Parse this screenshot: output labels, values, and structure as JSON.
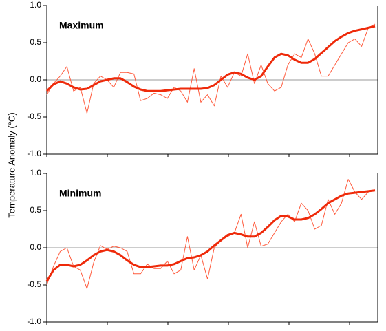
{
  "chart_data": [
    {
      "type": "line",
      "title": "Maximum",
      "ylabel": "Temperature Anomaly (°C)",
      "categories": [
        null,
        null,
        null,
        null,
        null,
        null,
        null,
        null,
        null,
        null,
        null,
        null,
        null,
        null,
        null,
        null,
        null,
        null,
        null,
        null,
        null,
        null,
        null,
        null,
        null,
        null,
        null,
        null,
        null,
        null,
        null,
        null,
        null,
        null,
        null,
        null,
        null,
        null,
        null,
        null,
        null,
        null,
        null,
        null,
        null,
        null,
        null,
        null,
        null,
        null
      ],
      "series": [
        {
          "color": "#ff5a3c",
          "width": 1,
          "values": [
            -0.2,
            -0.05,
            0.05,
            0.18,
            -0.15,
            -0.1,
            -0.45,
            -0.05,
            0.05,
            0.0,
            -0.1,
            0.1,
            0.1,
            0.08,
            -0.28,
            -0.25,
            -0.18,
            -0.2,
            -0.25,
            -0.1,
            -0.15,
            -0.3,
            0.15,
            -0.3,
            -0.2,
            -0.35,
            0.05,
            -0.1,
            0.1,
            0.05,
            0.35,
            -0.05,
            0.2,
            -0.05,
            -0.15,
            -0.1,
            0.2,
            0.35,
            0.3,
            0.55,
            0.35,
            0.05,
            0.05,
            0.2,
            0.35,
            0.5,
            0.55,
            0.45,
            0.7,
            0.75
          ]
        },
        {
          "color": "#ee2a0a",
          "width": 3,
          "values": [
            -0.15,
            -0.06,
            -0.02,
            -0.05,
            -0.1,
            -0.13,
            -0.12,
            -0.07,
            -0.02,
            0.0,
            0.02,
            0.02,
            -0.03,
            -0.09,
            -0.13,
            -0.15,
            -0.15,
            -0.15,
            -0.14,
            -0.13,
            -0.12,
            -0.12,
            -0.12,
            -0.12,
            -0.11,
            -0.07,
            0.0,
            0.07,
            0.1,
            0.08,
            0.03,
            0.0,
            0.05,
            0.18,
            0.3,
            0.35,
            0.33,
            0.27,
            0.23,
            0.23,
            0.28,
            0.36,
            0.44,
            0.52,
            0.58,
            0.63,
            0.66,
            0.68,
            0.7,
            0.72
          ]
        }
      ],
      "ylim": [
        -1.0,
        1.0
      ],
      "yticks": [
        {
          "value": -1.0,
          "label": "-1.0"
        },
        {
          "value": -0.5,
          "label": "-0.5"
        },
        {
          "value": 0,
          "label": "0.0"
        },
        {
          "value": 0.5,
          "label": "0.5"
        },
        {
          "value": 1.0,
          "label": "1.0"
        }
      ]
    },
    {
      "type": "line",
      "title": "Minimum",
      "categories": [
        null,
        null,
        null,
        null,
        null,
        null,
        null,
        null,
        null,
        null,
        null,
        null,
        null,
        null,
        null,
        null,
        null,
        null,
        null,
        null,
        null,
        null,
        null,
        null,
        null,
        null,
        null,
        null,
        null,
        null,
        null,
        null,
        null,
        null,
        null,
        null,
        null,
        null,
        null,
        null,
        null,
        null,
        null,
        null,
        null,
        null,
        null,
        null,
        null,
        null
      ],
      "series": [
        {
          "color": "#ff5a3c",
          "width": 1,
          "values": [
            -0.5,
            -0.25,
            -0.05,
            0.0,
            -0.25,
            -0.3,
            -0.55,
            -0.2,
            0.03,
            -0.02,
            0.02,
            0.0,
            -0.05,
            -0.35,
            -0.35,
            -0.22,
            -0.28,
            -0.28,
            -0.18,
            -0.35,
            -0.3,
            0.15,
            -0.3,
            -0.1,
            -0.42,
            0.0,
            0.1,
            0.15,
            0.2,
            0.45,
            0.0,
            0.35,
            0.02,
            0.05,
            0.2,
            0.35,
            0.45,
            0.35,
            0.6,
            0.5,
            0.25,
            0.3,
            0.65,
            0.45,
            0.6,
            0.92,
            0.75,
            0.65,
            0.75,
            0.78
          ]
        },
        {
          "color": "#ee2a0a",
          "width": 3,
          "values": [
            -0.45,
            -0.3,
            -0.23,
            -0.23,
            -0.25,
            -0.23,
            -0.17,
            -0.1,
            -0.05,
            -0.03,
            -0.05,
            -0.1,
            -0.17,
            -0.23,
            -0.26,
            -0.26,
            -0.25,
            -0.24,
            -0.24,
            -0.22,
            -0.18,
            -0.14,
            -0.13,
            -0.1,
            -0.05,
            0.03,
            0.1,
            0.17,
            0.2,
            0.18,
            0.15,
            0.15,
            0.2,
            0.28,
            0.37,
            0.43,
            0.42,
            0.38,
            0.38,
            0.4,
            0.45,
            0.52,
            0.6,
            0.65,
            0.7,
            0.73,
            0.74,
            0.75,
            0.76,
            0.77
          ]
        }
      ],
      "ylim": [
        -1.0,
        1.0
      ],
      "yticks": [
        {
          "value": -1.0,
          "label": "-1.0"
        },
        {
          "value": -0.5,
          "label": "-0.5"
        },
        {
          "value": 0,
          "label": "0.0"
        },
        {
          "value": 0.5,
          "label": "0.5"
        },
        {
          "value": 1.0,
          "label": "1.0"
        }
      ]
    }
  ]
}
